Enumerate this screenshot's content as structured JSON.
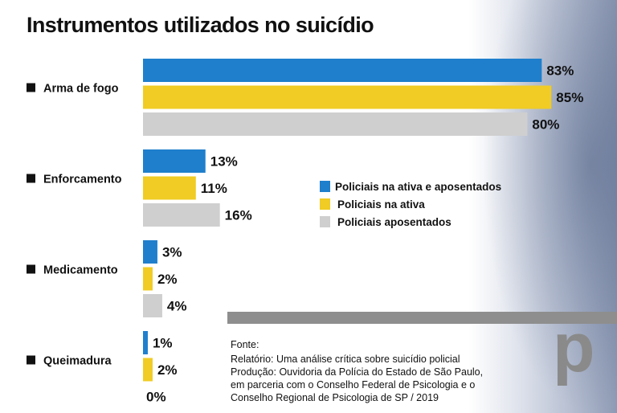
{
  "chart_data": {
    "type": "bar",
    "orientation": "horizontal",
    "title": "Instrumentos utilizados no suicídio",
    "categories": [
      "Arma de fogo",
      "Enforcamento",
      "Medicamento",
      "Queimadura"
    ],
    "series": [
      {
        "name": "Policiais na ativa e aposentados",
        "color": "#1f7fcc",
        "values": [
          83,
          13,
          3,
          1
        ]
      },
      {
        "name": "Policiais na ativa",
        "color": "#f0cc24",
        "values": [
          85,
          11,
          2,
          2
        ]
      },
      {
        "name": "Policiais aposentados",
        "color": "#cfcfcf",
        "values": [
          80,
          16,
          4,
          0
        ]
      }
    ],
    "value_suffix": "%",
    "xlim": [
      0,
      100
    ],
    "grid": false,
    "legend_position": "center-right",
    "xlabel": "",
    "ylabel": ""
  },
  "source": {
    "heading": "Fonte:",
    "lines": [
      "Relatório: Uma análise crítica sobre suicídio policial",
      "Produção: Ouvidoria da Polícia do Estado de São Paulo,",
      "em parceria com o Conselho Federal de Psicologia e o",
      "Conselho Regional de Psicologia de SP / 2019"
    ]
  },
  "logo": "p"
}
